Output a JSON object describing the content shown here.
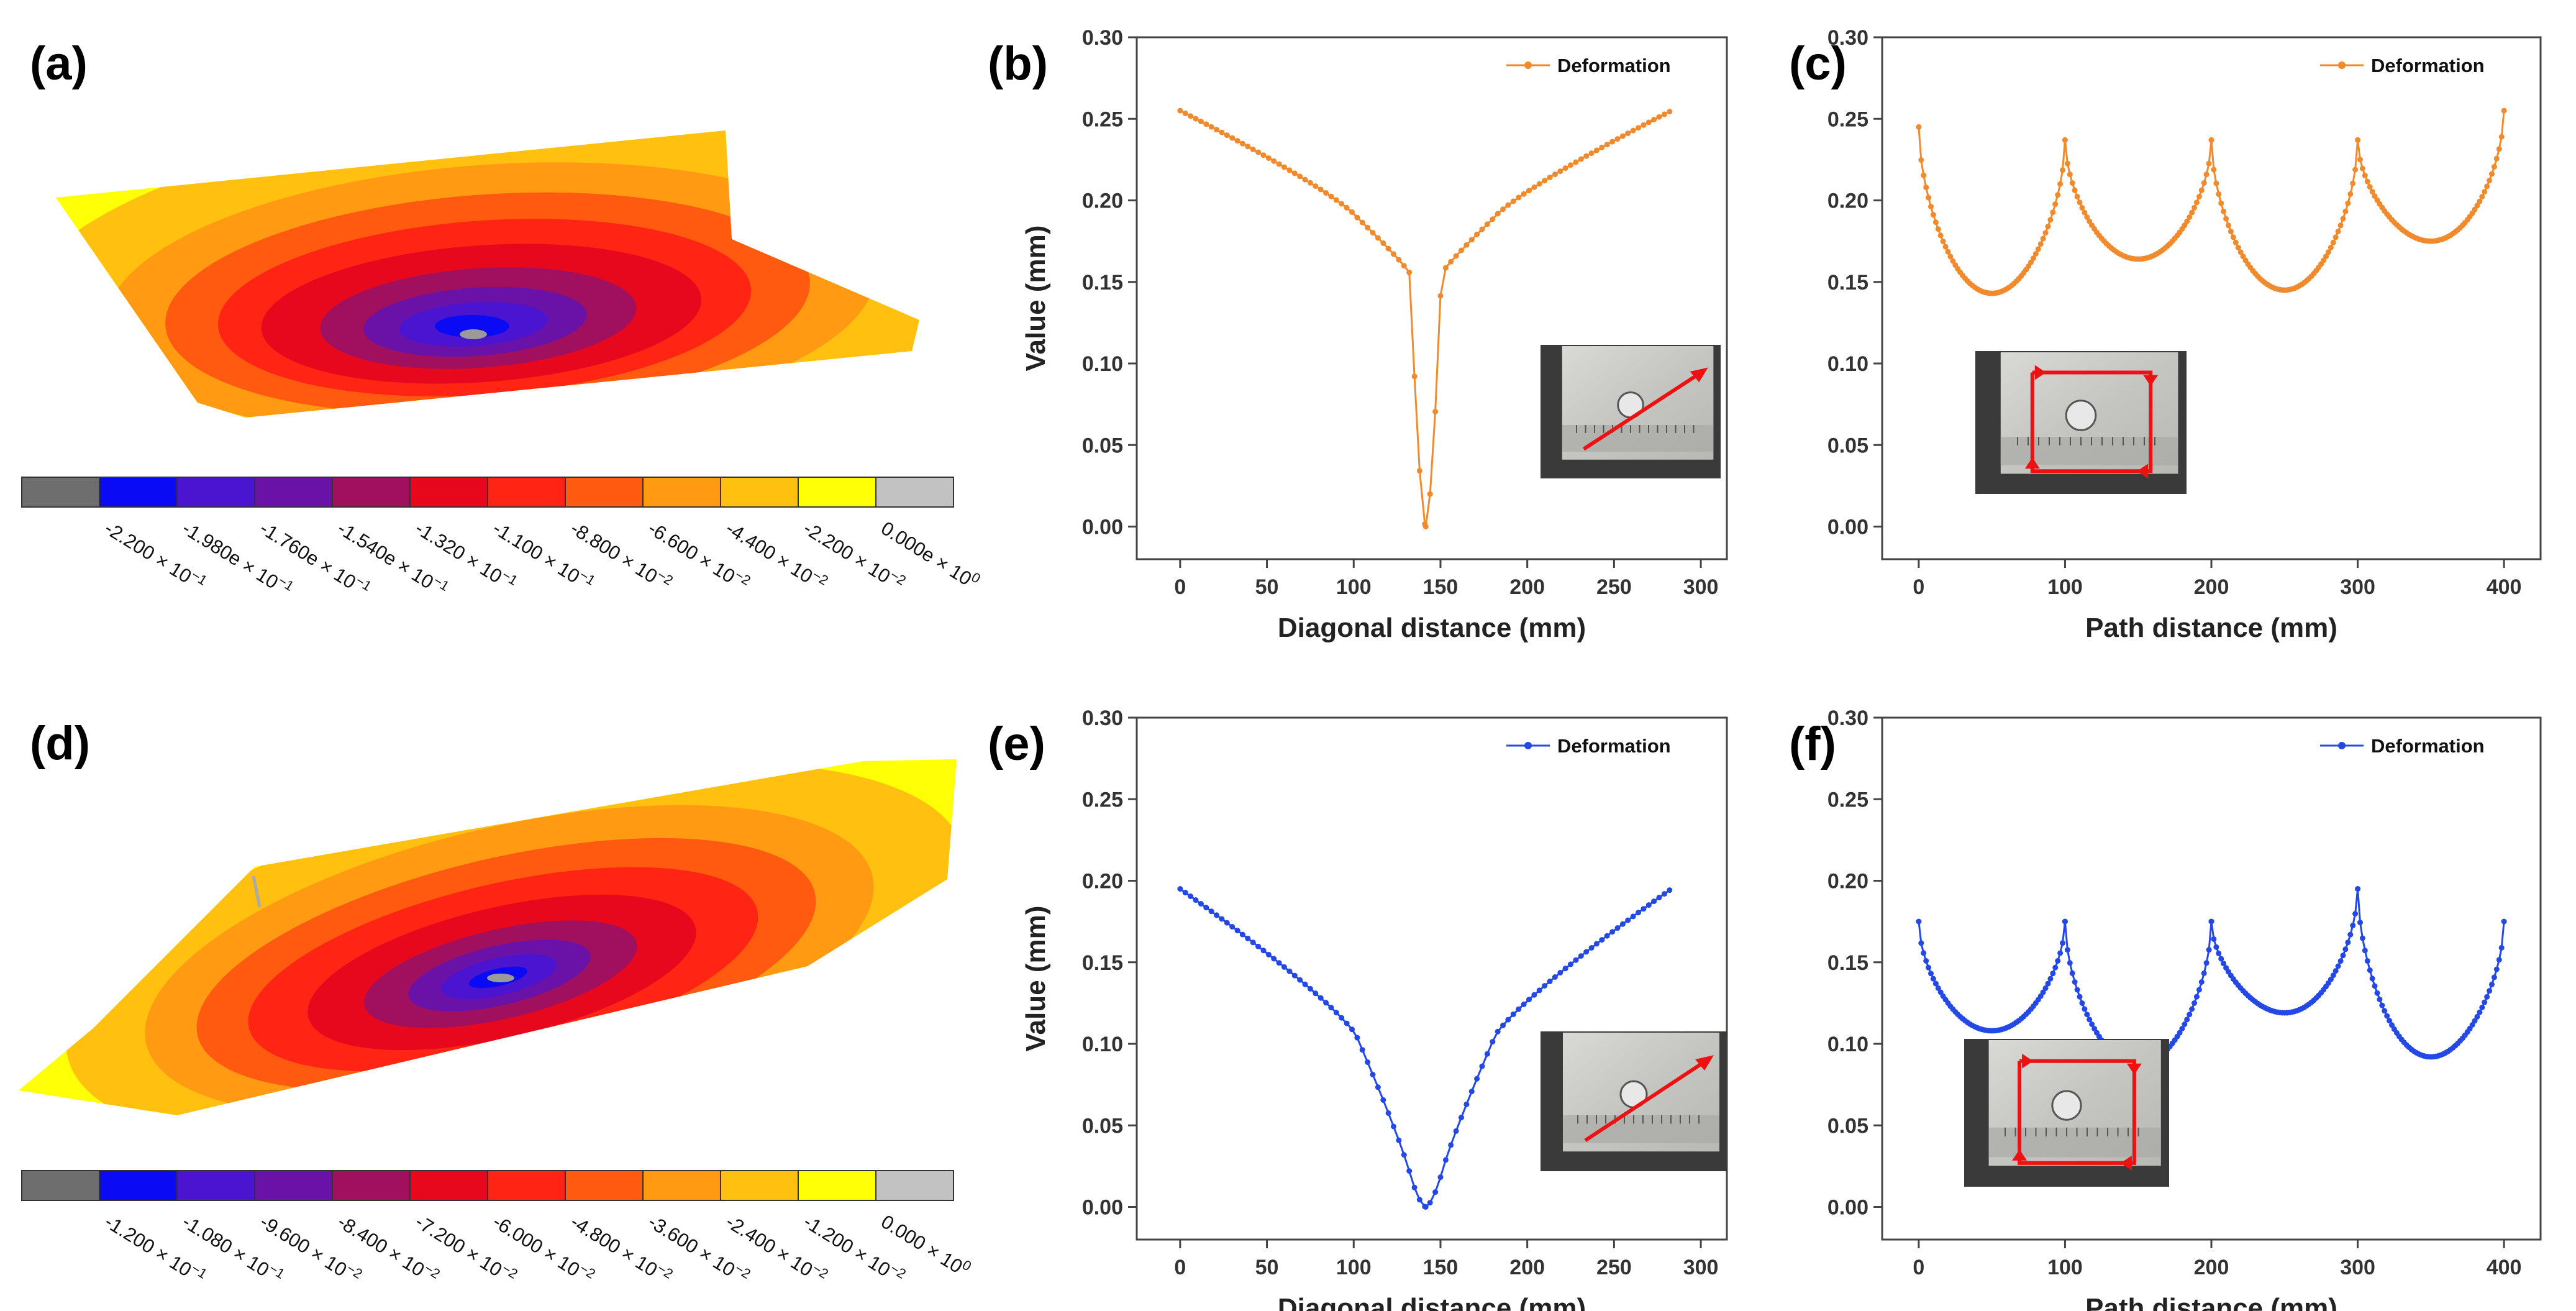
{
  "panels": {
    "a": {
      "letter": "(a)",
      "type": "contour",
      "colorbar": {
        "labels": [
          "-2.200 × 10",
          "-1.980e × 10",
          "-1.760e × 10",
          "-1.540e × 10",
          "-1.320 × 10",
          "-1.100 × 10",
          "-8.800 × 10",
          "-6.600 × 10",
          "-4.400 × 10",
          "-2.200 × 10",
          "0.000e × 10"
        ],
        "exponents": [
          "−1",
          "−1",
          "−1",
          "−1",
          "−1",
          "−1",
          "−2",
          "−2",
          "−2",
          "−2",
          "0"
        ],
        "colors": [
          "#6e6e6e",
          "#0a0af5",
          "#4a14d0",
          "#6a12a8",
          "#a0105e",
          "#e8081e",
          "#ff2414",
          "#ff5a10",
          "#ff9a12",
          "#ffc010",
          "#ffff05",
          "#c2c2c2"
        ]
      }
    },
    "d": {
      "letter": "(d)",
      "type": "contour",
      "colorbar": {
        "labels": [
          "-1.200 × 10",
          "-1.080 × 10",
          "-9.600 × 10",
          "-8.400 × 10",
          "-7.200 × 10",
          "-6.000 × 10",
          "-4.800 × 10",
          "-3.600 × 10",
          "-2.400 × 10",
          "-1.200 × 10",
          "0.000 × 10"
        ],
        "exponents": [
          "−1",
          "−1",
          "−2",
          "−2",
          "−2",
          "−2",
          "−2",
          "−2",
          "−2",
          "−2",
          "0"
        ],
        "colors": [
          "#6e6e6e",
          "#0a0af5",
          "#4a14d0",
          "#6a12a8",
          "#a0105e",
          "#e8081e",
          "#ff2414",
          "#ff5a10",
          "#ff9a12",
          "#ffc010",
          "#ffff05",
          "#c2c2c2"
        ]
      }
    }
  },
  "chart_data": [
    {
      "id": "b",
      "letter": "(b)",
      "type": "line",
      "shape": "diagonal",
      "color": "#f08a2c",
      "xlabel": "Diagonal distance (mm)",
      "ylabel": "Value (mm)",
      "xlim": [
        -25,
        315
      ],
      "ylim": [
        -0.02,
        0.3
      ],
      "xticks": [
        0,
        50,
        100,
        150,
        200,
        250,
        300
      ],
      "yticks": [
        "0.00",
        "0.05",
        "0.10",
        "0.15",
        "0.20",
        "0.25",
        "0.30"
      ],
      "legend": "Deformation",
      "series": [
        {
          "name": "Deformation",
          "x_range": [
            0,
            283
          ],
          "y_edges": 0.255,
          "y_kink": 0.19,
          "y_notch_top": 0.155,
          "y_min": 0.0,
          "center_x": 141.5
        }
      ]
    },
    {
      "id": "c",
      "letter": "(c)",
      "type": "line",
      "shape": "path",
      "color": "#f08a2c",
      "xlabel": "Path distance (mm)",
      "ylabel": "",
      "xlim": [
        -25,
        425
      ],
      "ylim": [
        -0.02,
        0.3
      ],
      "xticks": [
        0,
        100,
        200,
        300,
        400
      ],
      "yticks": [
        "0.00",
        "0.05",
        "0.10",
        "0.15",
        "0.20",
        "0.25",
        "0.30"
      ],
      "legend": "Deformation",
      "series": [
        {
          "name": "Deformation",
          "peaks": [
            0.245,
            0.237,
            0.237,
            0.237,
            0.255
          ],
          "minima": [
            0.143,
            0.164,
            0.145,
            0.175
          ]
        }
      ]
    },
    {
      "id": "e",
      "letter": "(e)",
      "type": "line",
      "shape": "diagonal",
      "color": "#2348e6",
      "xlabel": "Diagonal distance (mm)",
      "ylabel": "Value (mm)",
      "xlim": [
        -25,
        315
      ],
      "ylim": [
        -0.02,
        0.3
      ],
      "xticks": [
        0,
        50,
        100,
        150,
        200,
        250,
        300
      ],
      "yticks": [
        "0.00",
        "0.05",
        "0.10",
        "0.15",
        "0.20",
        "0.25",
        "0.30"
      ],
      "legend": "Deformation",
      "series": [
        {
          "name": "Deformation",
          "x_range": [
            0,
            283
          ],
          "y_edges": 0.195,
          "y_kink": 0.105,
          "y_notch_top": 0.02,
          "y_min": 0.0,
          "center_x": 141.5
        }
      ]
    },
    {
      "id": "f",
      "letter": "(f)",
      "type": "line",
      "shape": "path",
      "color": "#2348e6",
      "xlabel": "Path distance (mm)",
      "ylabel": "",
      "xlim": [
        -25,
        425
      ],
      "ylim": [
        -0.02,
        0.3
      ],
      "xticks": [
        0,
        100,
        200,
        300,
        400
      ],
      "yticks": [
        "0.00",
        "0.05",
        "0.10",
        "0.15",
        "0.20",
        "0.25",
        "0.30"
      ],
      "legend": "Deformation",
      "series": [
        {
          "name": "Deformation",
          "peaks": [
            0.175,
            0.175,
            0.175,
            0.195,
            0.175
          ],
          "minima": [
            0.108,
            0.087,
            0.119,
            0.092
          ]
        }
      ]
    }
  ]
}
